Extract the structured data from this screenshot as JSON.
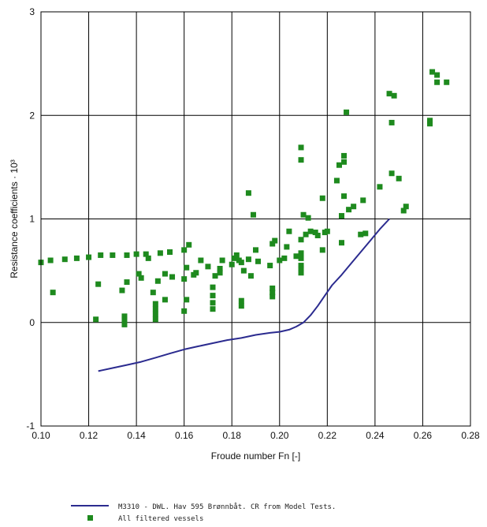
{
  "chart_data": {
    "type": "scatter",
    "xlabel": "Froude number Fn [-]",
    "ylabel": "Resistance coefficients · 10³",
    "xlim": [
      0.1,
      0.28
    ],
    "ylim": [
      -1,
      3
    ],
    "x_ticks": [
      "0.10",
      "0.12",
      "0.14",
      "0.16",
      "0.18",
      "0.20",
      "0.22",
      "0.24",
      "0.26",
      "0.28"
    ],
    "y_ticks": [
      "3",
      "2",
      "1",
      "0",
      "-1"
    ],
    "grid": true,
    "legend_position": "bottom",
    "series": [
      {
        "name": "M3310 - DWL. Hav 595 Brønnbåt. CR from Model Tests.",
        "kind": "line",
        "color": "#2b2b8f",
        "points": [
          [
            0.124,
            -0.47
          ],
          [
            0.13,
            -0.44
          ],
          [
            0.136,
            -0.41
          ],
          [
            0.142,
            -0.38
          ],
          [
            0.148,
            -0.34
          ],
          [
            0.154,
            -0.3
          ],
          [
            0.16,
            -0.26
          ],
          [
            0.166,
            -0.23
          ],
          [
            0.172,
            -0.2
          ],
          [
            0.178,
            -0.17
          ],
          [
            0.184,
            -0.15
          ],
          [
            0.19,
            -0.12
          ],
          [
            0.196,
            -0.1
          ],
          [
            0.2,
            -0.09
          ],
          [
            0.204,
            -0.07
          ],
          [
            0.207,
            -0.04
          ],
          [
            0.21,
            0.0
          ],
          [
            0.213,
            0.07
          ],
          [
            0.216,
            0.16
          ],
          [
            0.219,
            0.26
          ],
          [
            0.222,
            0.36
          ],
          [
            0.226,
            0.46
          ],
          [
            0.23,
            0.57
          ],
          [
            0.234,
            0.68
          ],
          [
            0.238,
            0.79
          ],
          [
            0.242,
            0.9
          ],
          [
            0.246,
            1.0
          ]
        ]
      },
      {
        "name": "All filtered vessels",
        "kind": "scatter",
        "color": "#1e8a1e",
        "points": [
          [
            0.1,
            0.58
          ],
          [
            0.104,
            0.6
          ],
          [
            0.105,
            0.29
          ],
          [
            0.11,
            0.61
          ],
          [
            0.115,
            0.62
          ],
          [
            0.12,
            0.63
          ],
          [
            0.123,
            0.03
          ],
          [
            0.124,
            0.37
          ],
          [
            0.125,
            0.65
          ],
          [
            0.13,
            0.65
          ],
          [
            0.134,
            0.31
          ],
          [
            0.135,
            -0.02
          ],
          [
            0.135,
            0.03
          ],
          [
            0.135,
            0.06
          ],
          [
            0.136,
            0.65
          ],
          [
            0.136,
            0.39
          ],
          [
            0.14,
            0.66
          ],
          [
            0.141,
            0.47
          ],
          [
            0.142,
            0.43
          ],
          [
            0.144,
            0.66
          ],
          [
            0.145,
            0.62
          ],
          [
            0.147,
            0.29
          ],
          [
            0.148,
            0.03
          ],
          [
            0.148,
            0.08
          ],
          [
            0.148,
            0.13
          ],
          [
            0.148,
            0.18
          ],
          [
            0.149,
            0.4
          ],
          [
            0.15,
            0.67
          ],
          [
            0.152,
            0.22
          ],
          [
            0.152,
            0.47
          ],
          [
            0.154,
            0.68
          ],
          [
            0.155,
            0.44
          ],
          [
            0.16,
            0.7
          ],
          [
            0.16,
            0.42
          ],
          [
            0.16,
            0.11
          ],
          [
            0.161,
            0.22
          ],
          [
            0.161,
            0.53
          ],
          [
            0.162,
            0.75
          ],
          [
            0.164,
            0.46
          ],
          [
            0.165,
            0.48
          ],
          [
            0.167,
            0.6
          ],
          [
            0.17,
            0.54
          ],
          [
            0.172,
            0.13
          ],
          [
            0.172,
            0.19
          ],
          [
            0.172,
            0.26
          ],
          [
            0.172,
            0.34
          ],
          [
            0.173,
            0.45
          ],
          [
            0.175,
            0.52
          ],
          [
            0.175,
            0.48
          ],
          [
            0.176,
            0.6
          ],
          [
            0.18,
            0.56
          ],
          [
            0.181,
            0.62
          ],
          [
            0.182,
            0.65
          ],
          [
            0.183,
            0.6
          ],
          [
            0.184,
            0.16
          ],
          [
            0.184,
            0.21
          ],
          [
            0.184,
            0.58
          ],
          [
            0.185,
            0.5
          ],
          [
            0.187,
            0.61
          ],
          [
            0.187,
            1.25
          ],
          [
            0.188,
            0.45
          ],
          [
            0.189,
            1.04
          ],
          [
            0.19,
            0.7
          ],
          [
            0.191,
            0.59
          ],
          [
            0.196,
            0.55
          ],
          [
            0.197,
            0.25
          ],
          [
            0.197,
            0.29
          ],
          [
            0.197,
            0.33
          ],
          [
            0.197,
            0.76
          ],
          [
            0.198,
            0.79
          ],
          [
            0.2,
            0.6
          ],
          [
            0.202,
            0.62
          ],
          [
            0.203,
            0.73
          ],
          [
            0.204,
            0.88
          ],
          [
            0.207,
            0.64
          ],
          [
            0.209,
            0.48
          ],
          [
            0.209,
            0.52
          ],
          [
            0.209,
            0.55
          ],
          [
            0.209,
            0.62
          ],
          [
            0.209,
            0.67
          ],
          [
            0.209,
            0.8
          ],
          [
            0.209,
            1.57
          ],
          [
            0.209,
            1.69
          ],
          [
            0.21,
            1.04
          ],
          [
            0.211,
            0.85
          ],
          [
            0.212,
            1.01
          ],
          [
            0.213,
            0.88
          ],
          [
            0.215,
            0.87
          ],
          [
            0.216,
            0.84
          ],
          [
            0.218,
            0.7
          ],
          [
            0.218,
            1.2
          ],
          [
            0.219,
            0.87
          ],
          [
            0.22,
            0.88
          ],
          [
            0.224,
            1.37
          ],
          [
            0.225,
            1.52
          ],
          [
            0.226,
            1.03
          ],
          [
            0.226,
            0.77
          ],
          [
            0.227,
            1.55
          ],
          [
            0.227,
            1.61
          ],
          [
            0.227,
            1.22
          ],
          [
            0.228,
            2.03
          ],
          [
            0.229,
            1.09
          ],
          [
            0.231,
            1.12
          ],
          [
            0.234,
            0.85
          ],
          [
            0.235,
            1.18
          ],
          [
            0.236,
            0.86
          ],
          [
            0.242,
            1.31
          ],
          [
            0.246,
            2.21
          ],
          [
            0.247,
            1.93
          ],
          [
            0.247,
            1.44
          ],
          [
            0.248,
            2.19
          ],
          [
            0.25,
            1.39
          ],
          [
            0.252,
            1.08
          ],
          [
            0.253,
            1.12
          ],
          [
            0.263,
            1.92
          ],
          [
            0.263,
            1.95
          ],
          [
            0.264,
            2.42
          ],
          [
            0.266,
            2.32
          ],
          [
            0.266,
            2.39
          ],
          [
            0.27,
            2.32
          ]
        ]
      }
    ]
  }
}
